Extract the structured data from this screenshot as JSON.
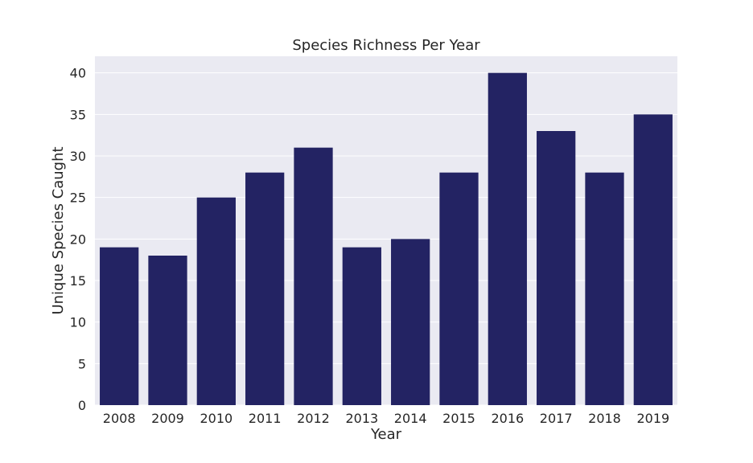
{
  "chart_data": {
    "type": "bar",
    "title": "Species Richness Per Year",
    "xlabel": "Year",
    "ylabel": "Unique Species Caught",
    "categories": [
      "2008",
      "2009",
      "2010",
      "2011",
      "2012",
      "2013",
      "2014",
      "2015",
      "2016",
      "2017",
      "2018",
      "2019"
    ],
    "values": [
      19,
      18,
      25,
      28,
      31,
      19,
      20,
      28,
      40,
      33,
      28,
      35
    ],
    "yticks": [
      0,
      5,
      10,
      15,
      20,
      25,
      30,
      35,
      40
    ],
    "ylim": [
      0,
      42
    ],
    "grid": true,
    "colors": {
      "bar": "#232363",
      "plot_background": "#eaeaf2",
      "grid": "#ffffff"
    }
  }
}
